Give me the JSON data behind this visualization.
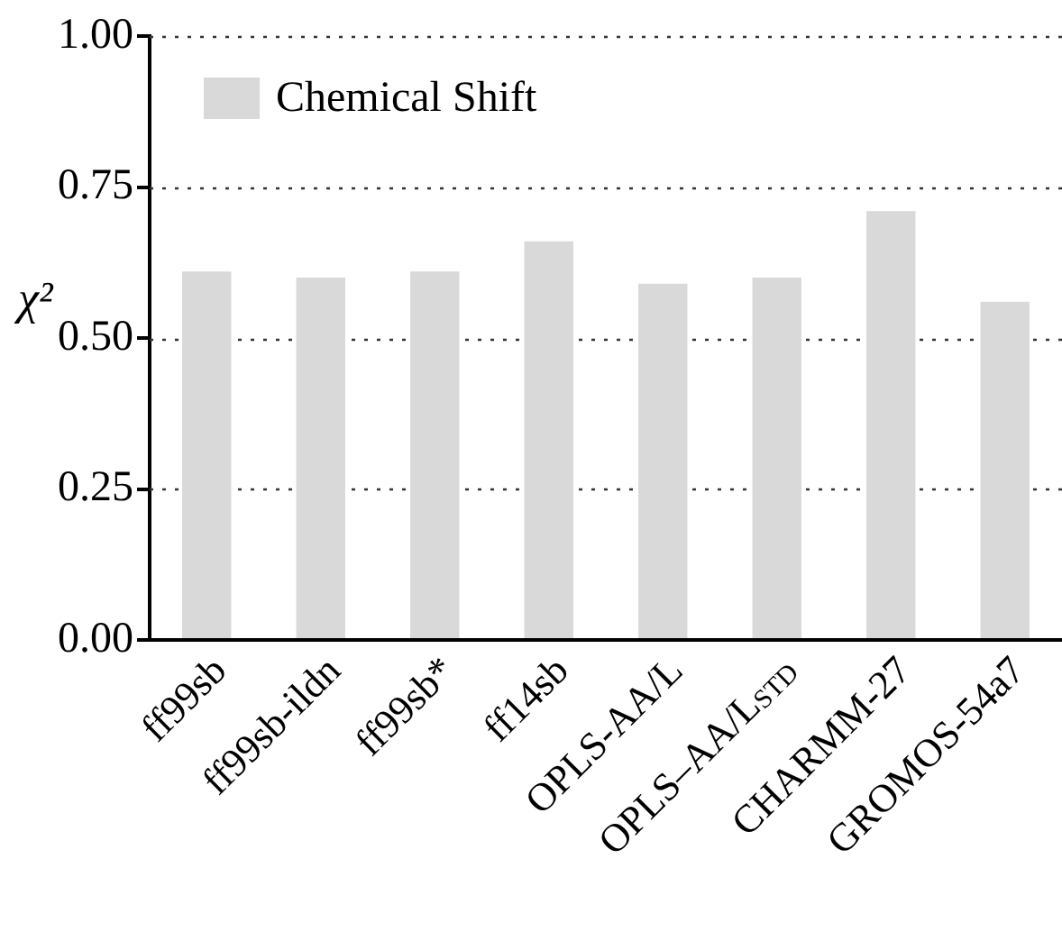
{
  "chart_data": {
    "type": "bar",
    "ylabel": "χ²",
    "categories": [
      "ff99sb",
      "ff99sb-ildn",
      "ff99sb*",
      "ff14sb",
      "OPLS-AA/L",
      "OPLS–AA/L$_{STD}$",
      "CHARMM-27",
      "GROMOS-54a7"
    ],
    "series": [
      {
        "name": "Chemical Shift",
        "color": "#d9d9d9",
        "values": [
          0.61,
          0.6,
          0.61,
          0.66,
          0.59,
          0.6,
          0.71,
          0.56
        ]
      }
    ],
    "ylim": [
      0,
      1
    ],
    "yticks": [
      {
        "value": 0,
        "label": "0.00"
      },
      {
        "value": 0.25,
        "label": "0.25"
      },
      {
        "value": 0.5,
        "label": "0.50"
      },
      {
        "value": 0.75,
        "label": "0.75"
      },
      {
        "value": 1,
        "label": "1.00"
      }
    ],
    "grid": "y",
    "legend": "top left"
  }
}
